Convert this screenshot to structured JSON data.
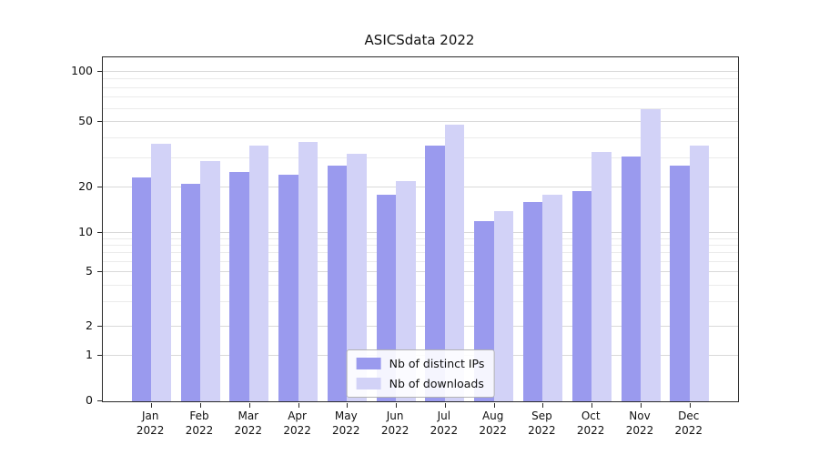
{
  "chart_data": {
    "type": "bar",
    "title": "ASICSdata 2022",
    "categories": [
      "Jan",
      "Feb",
      "Mar",
      "Apr",
      "May",
      "Jun",
      "Jul",
      "Aug",
      "Sep",
      "Oct",
      "Nov",
      "Dec"
    ],
    "x_axis": {
      "year_label": "2022"
    },
    "series": [
      {
        "name": "Nb of distinct IPs",
        "color": "#9a9aee",
        "values": [
          23,
          21,
          25,
          24,
          27,
          18,
          36,
          12,
          16,
          19,
          31,
          27
        ]
      },
      {
        "name": "Nb of downloads",
        "color": "#d2d2f7",
        "values": [
          37,
          29,
          36,
          38,
          32,
          22,
          48,
          14,
          18,
          33,
          60,
          36
        ]
      }
    ],
    "y_axis": {
      "scale": "symlog",
      "ticks": [
        0,
        1,
        2,
        5,
        10,
        20,
        50,
        100
      ],
      "minor_ticks": [
        3,
        4,
        6,
        7,
        8,
        9,
        30,
        40,
        60,
        70,
        80,
        90
      ],
      "range": [
        0,
        120
      ]
    },
    "grid": true,
    "legend_position": "lower center"
  },
  "colors": {
    "grid_major": "#d9d9d9",
    "grid_minor": "#ebebeb",
    "spine": "#2a2a2a",
    "background": "#ffffff"
  }
}
